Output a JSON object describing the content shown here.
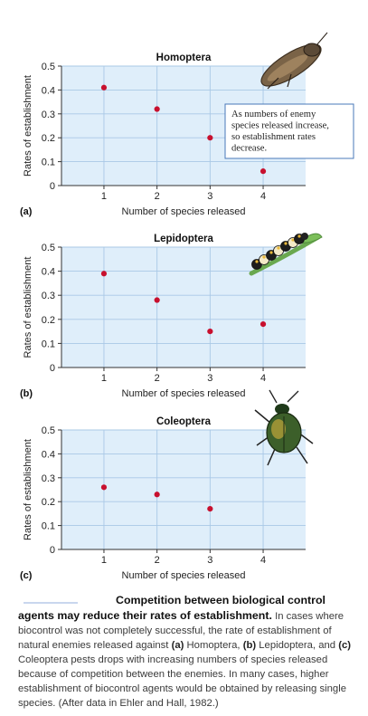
{
  "chart_data": [
    {
      "type": "scatter",
      "panel_label": "(a)",
      "title": "Homoptera",
      "xlabel": "Number of species released",
      "ylabel": "Rates of establishment",
      "x_ticks": [
        "1",
        "2",
        "3",
        "4"
      ],
      "y_ticks": [
        "0",
        "0.1",
        "0.2",
        "0.3",
        "0.4",
        "0.5"
      ],
      "xlim": [
        0.2,
        4.8
      ],
      "ylim": [
        0,
        0.5
      ],
      "grid": true,
      "x": [
        1,
        2,
        3,
        4
      ],
      "values": [
        0.41,
        0.32,
        0.2,
        0.06
      ],
      "annotation": [
        "As numbers of enemy",
        "species released increase,",
        "so establishment rates",
        "decrease."
      ],
      "insect": "leafhopper-icon",
      "color": "#c8102e"
    },
    {
      "type": "scatter",
      "panel_label": "(b)",
      "title": "Lepidoptera",
      "xlabel": "Number of species released",
      "ylabel": "Rates of establishment",
      "x_ticks": [
        "1",
        "2",
        "3",
        "4"
      ],
      "y_ticks": [
        "0",
        "0.1",
        "0.2",
        "0.3",
        "0.4",
        "0.5"
      ],
      "xlim": [
        0.2,
        4.8
      ],
      "ylim": [
        0,
        0.5
      ],
      "grid": true,
      "x": [
        1,
        2,
        3,
        4
      ],
      "values": [
        0.39,
        0.28,
        0.15,
        0.18
      ],
      "insect": "caterpillar-icon",
      "color": "#c8102e"
    },
    {
      "type": "scatter",
      "panel_label": "(c)",
      "title": "Coleoptera",
      "xlabel": "Number of species released",
      "ylabel": "Rates of establishment",
      "x_ticks": [
        "1",
        "2",
        "3",
        "4"
      ],
      "y_ticks": [
        "0",
        "0.1",
        "0.2",
        "0.3",
        "0.4",
        "0.5"
      ],
      "xlim": [
        0.2,
        4.8
      ],
      "ylim": [
        0,
        0.5
      ],
      "grid": true,
      "x": [
        1,
        2,
        3
      ],
      "values": [
        0.26,
        0.23,
        0.17
      ],
      "insect": "beetle-icon",
      "color": "#c8102e"
    }
  ],
  "caption": {
    "lead": "Competition between biological control agents may reduce their rates of establishment.",
    "text1": "In cases where biocontrol was not completely successful, the rate of establishment of natural enemies released against ",
    "a_label": "(a)",
    "text2": " Homoptera, ",
    "b_label": "(b)",
    "text3": " Lepidoptera, and ",
    "c_label": "(c)",
    "text4": " Coleoptera pests drops with increasing numbers of species released because of competition between the enemies. In many cases, higher establishment of biocontrol agents would be obtained by releasing single species. (After data in Ehler and Hall, 1982.)"
  },
  "colors": {
    "plot_bg": "#dfeefa",
    "grid": "#a9c8e6",
    "point": "#c8102e",
    "callout_border": "#4a78b8"
  }
}
